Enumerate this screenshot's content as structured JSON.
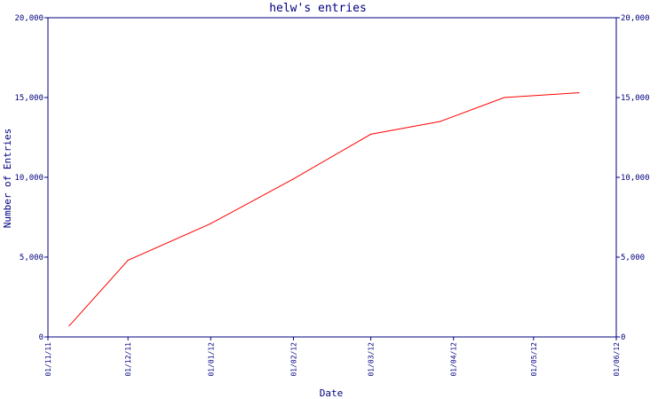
{
  "chart_data": {
    "type": "line",
    "title": "helw's entries",
    "xlabel": "Date",
    "ylabel": "Number of Entries",
    "xlim": [
      "2011-11-01",
      "2012-06-01"
    ],
    "ylim": [
      0,
      20000
    ],
    "yticks": [
      0,
      5000,
      10000,
      15000,
      20000
    ],
    "ytick_labels": [
      "0",
      "5,000",
      "10,000",
      "15,000",
      "20,000"
    ],
    "xticks": [
      "2011-11-01",
      "2011-12-01",
      "2012-01-01",
      "2012-02-01",
      "2012-03-01",
      "2012-04-01",
      "2012-05-01",
      "2012-06-01"
    ],
    "xtick_labels": [
      "01/11/11",
      "01/12/11",
      "01/01/12",
      "01/02/12",
      "01/03/12",
      "01/04/12",
      "01/05/12",
      "01/06/12"
    ],
    "right_axis": true,
    "grid": false,
    "colors": {
      "axis": "#000080",
      "line": "#ff0000",
      "background": "#ffffff"
    },
    "series": [
      {
        "x": [
          "2011-11-09",
          "2011-12-01",
          "2012-01-01",
          "2012-02-01",
          "2012-03-01",
          "2012-03-27",
          "2012-04-20",
          "2012-05-18"
        ],
        "y": [
          700,
          4800,
          7100,
          9900,
          12700,
          13500,
          15000,
          15300
        ]
      }
    ]
  }
}
